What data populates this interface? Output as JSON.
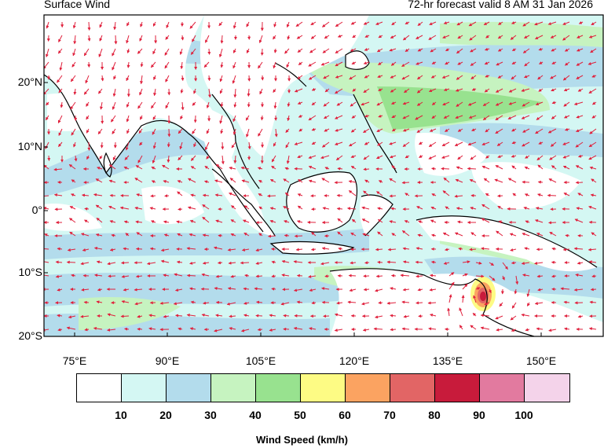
{
  "header": {
    "title": "Surface Wind",
    "forecast": "72-hr forecast valid 8 AM 31 Jan 2026"
  },
  "map": {
    "lat_labels": [
      "20°N",
      "10°N",
      "0°",
      "10°S",
      "20°S"
    ],
    "lon_labels": [
      "75°E",
      "90°E",
      "105°E",
      "120°E",
      "135°E",
      "150°E"
    ],
    "lat_range": [
      -20,
      30
    ],
    "lon_range": [
      70,
      160
    ],
    "cyclone_center": {
      "lon": 141,
      "lat": -14
    },
    "arrow_color": "#e0203c"
  },
  "legend": {
    "title": "Wind Speed (km/h)",
    "colors": [
      "#ffffff",
      "#d4f7f3",
      "#b3dcec",
      "#c6f3c0",
      "#98e28f",
      "#fdfb84",
      "#fba361",
      "#e26565",
      "#c81b3b",
      "#e27a9f",
      "#f4d3ea"
    ],
    "ticks": [
      "10",
      "20",
      "30",
      "40",
      "50",
      "60",
      "70",
      "80",
      "90",
      "100"
    ]
  }
}
